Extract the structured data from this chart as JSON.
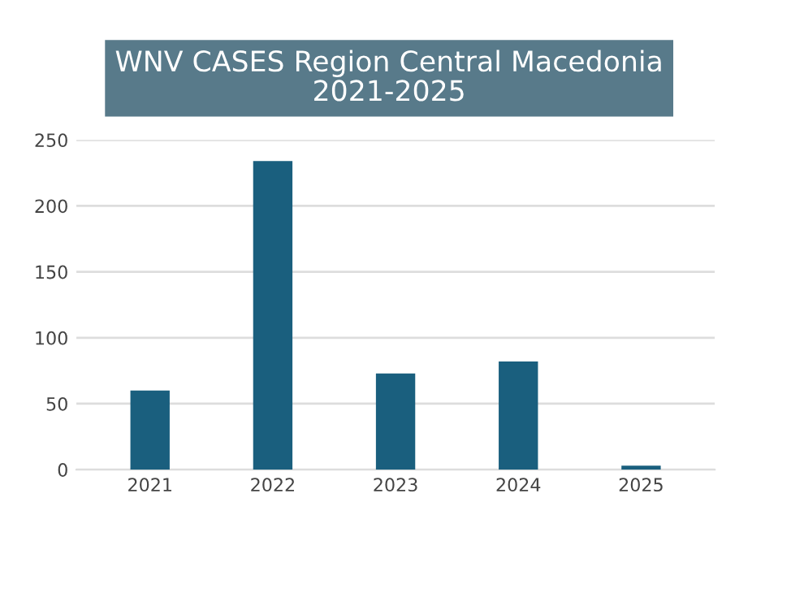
{
  "chart_data": {
    "type": "bar",
    "title": "WNV CASES Region Central Macedonia\n2021-2025",
    "categories": [
      "2021",
      "2022",
      "2023",
      "2024",
      "2025"
    ],
    "values": [
      60,
      234,
      73,
      82,
      3
    ],
    "color": "#1a5f7e",
    "ylim": [
      0,
      250
    ],
    "yticks": [
      0,
      50,
      100,
      150,
      200,
      250
    ],
    "grid": "y"
  }
}
